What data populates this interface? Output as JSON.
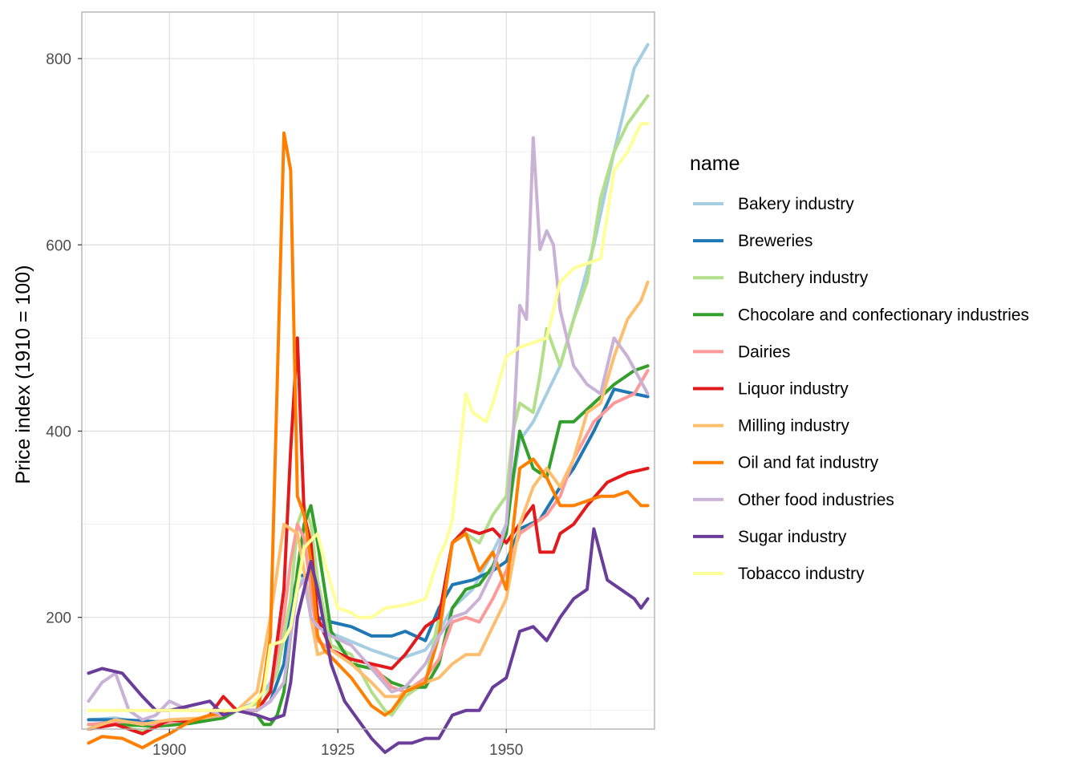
{
  "chart_data": {
    "type": "line",
    "title": "",
    "xlabel": "",
    "ylabel": "Price index (1910 = 100)",
    "xlim": [
      1887,
      1972
    ],
    "ylim": [
      80,
      850
    ],
    "x_ticks": [
      1900,
      1925,
      1950
    ],
    "y_ticks": [
      200,
      400,
      600,
      800
    ],
    "x_tick_labels": [
      "1900",
      "1925",
      "1950"
    ],
    "y_tick_labels": [
      "200",
      "400",
      "600",
      "800"
    ],
    "grid": true,
    "legend_title": "name",
    "legend_position": "right",
    "series": [
      {
        "name": "Bakery industry",
        "color": "#a6cee3",
        "x": [
          1888,
          1892,
          1896,
          1900,
          1905,
          1910,
          1913,
          1915,
          1917,
          1919,
          1920,
          1922,
          1925,
          1930,
          1934,
          1938,
          1940,
          1942,
          1945,
          1948,
          1950,
          1952,
          1954,
          1956,
          1958,
          1960,
          1963,
          1966,
          1969,
          1971
        ],
        "y": [
          90,
          92,
          85,
          88,
          92,
          100,
          110,
          130,
          180,
          230,
          245,
          190,
          180,
          165,
          155,
          165,
          185,
          210,
          230,
          270,
          300,
          390,
          410,
          440,
          470,
          520,
          600,
          700,
          790,
          815
        ]
      },
      {
        "name": "Breweries",
        "color": "#1f78b4",
        "x": [
          1888,
          1893,
          1898,
          1903,
          1908,
          1910,
          1913,
          1915,
          1917,
          1918,
          1919,
          1920,
          1921,
          1922,
          1924,
          1927,
          1930,
          1933,
          1935,
          1938,
          1940,
          1942,
          1945,
          1948,
          1950,
          1952,
          1955,
          1958,
          1960,
          1963,
          1966,
          1969,
          1971
        ],
        "y": [
          90,
          90,
          88,
          90,
          92,
          100,
          100,
          110,
          150,
          210,
          245,
          245,
          245,
          200,
          195,
          190,
          180,
          180,
          185,
          175,
          210,
          235,
          240,
          250,
          260,
          295,
          305,
          340,
          360,
          400,
          445,
          440,
          437
        ]
      },
      {
        "name": "Butchery industry",
        "color": "#b2df8a",
        "x": [
          1888,
          1892,
          1896,
          1900,
          1905,
          1910,
          1912,
          1914,
          1916,
          1918,
          1919,
          1920,
          1921,
          1922,
          1924,
          1927,
          1930,
          1932,
          1933,
          1935,
          1938,
          1940,
          1942,
          1944,
          1946,
          1948,
          1950,
          1951,
          1952,
          1954,
          1955,
          1956,
          1958,
          1960,
          1962,
          1964,
          1966,
          1968,
          1970,
          1971
        ],
        "y": [
          80,
          85,
          78,
          88,
          90,
          100,
          105,
          110,
          140,
          220,
          300,
          320,
          300,
          240,
          170,
          160,
          120,
          100,
          95,
          115,
          130,
          200,
          280,
          290,
          280,
          310,
          330,
          400,
          430,
          420,
          460,
          510,
          470,
          520,
          560,
          650,
          700,
          730,
          750,
          760
        ]
      },
      {
        "name": "Chocolare and confectionary industries",
        "color": "#33a02c",
        "x": [
          1888,
          1893,
          1898,
          1903,
          1908,
          1910,
          1913,
          1914,
          1915,
          1916,
          1917,
          1918,
          1919,
          1920,
          1921,
          1922,
          1924,
          1927,
          1930,
          1933,
          1935,
          1938,
          1940,
          1942,
          1944,
          1946,
          1948,
          1950,
          1951,
          1952,
          1954,
          1956,
          1958,
          1960,
          1963,
          1966,
          1969,
          1971
        ],
        "y": [
          85,
          85,
          83,
          86,
          92,
          100,
          95,
          85,
          85,
          95,
          120,
          180,
          250,
          300,
          320,
          280,
          185,
          150,
          145,
          130,
          125,
          125,
          150,
          210,
          230,
          235,
          255,
          290,
          350,
          400,
          360,
          350,
          410,
          410,
          430,
          450,
          465,
          470
        ]
      },
      {
        "name": "Dairies",
        "color": "#fb9a99",
        "x": [
          1888,
          1893,
          1898,
          1903,
          1908,
          1910,
          1913,
          1915,
          1916,
          1917,
          1918,
          1919,
          1920,
          1921,
          1922,
          1924,
          1927,
          1930,
          1933,
          1935,
          1938,
          1940,
          1942,
          1944,
          1946,
          1948,
          1950,
          1952,
          1954,
          1956,
          1958,
          1960,
          1963,
          1966,
          1969,
          1971
        ],
        "y": [
          85,
          88,
          85,
          90,
          95,
          100,
          100,
          120,
          160,
          200,
          260,
          300,
          285,
          230,
          175,
          165,
          155,
          150,
          125,
          120,
          135,
          155,
          195,
          200,
          195,
          220,
          250,
          290,
          300,
          310,
          330,
          370,
          410,
          430,
          440,
          465
        ]
      },
      {
        "name": "Liquor industry",
        "color": "#e31a1c",
        "x": [
          1888,
          1892,
          1896,
          1900,
          1903,
          1906,
          1908,
          1910,
          1913,
          1915,
          1917,
          1918,
          1919,
          1920,
          1921,
          1922,
          1924,
          1927,
          1930,
          1933,
          1935,
          1938,
          1940,
          1942,
          1944,
          1946,
          1948,
          1950,
          1952,
          1954,
          1955,
          1957,
          1958,
          1960,
          1962,
          1965,
          1968,
          1971
        ],
        "y": [
          80,
          85,
          75,
          90,
          88,
          95,
          115,
          100,
          100,
          120,
          230,
          380,
          500,
          310,
          280,
          200,
          165,
          155,
          150,
          145,
          160,
          190,
          200,
          280,
          295,
          290,
          295,
          280,
          300,
          320,
          270,
          270,
          290,
          300,
          320,
          345,
          355,
          360
        ]
      },
      {
        "name": "Milling industry",
        "color": "#fdbf6f",
        "x": [
          1888,
          1892,
          1896,
          1900,
          1905,
          1910,
          1913,
          1915,
          1917,
          1919,
          1920,
          1921,
          1922,
          1924,
          1927,
          1930,
          1932,
          1934,
          1936,
          1938,
          1940,
          1942,
          1944,
          1946,
          1948,
          1950,
          1952,
          1954,
          1956,
          1958,
          1960,
          1962,
          1964,
          1966,
          1968,
          1970,
          1971
        ],
        "y": [
          80,
          90,
          85,
          90,
          92,
          100,
          120,
          200,
          300,
          290,
          250,
          200,
          160,
          165,
          150,
          130,
          115,
          115,
          125,
          130,
          135,
          150,
          160,
          160,
          190,
          220,
          300,
          340,
          360,
          340,
          370,
          420,
          430,
          480,
          520,
          540,
          560
        ]
      },
      {
        "name": "Oil and fat industry",
        "color": "#ff7f00",
        "x": [
          1888,
          1890,
          1893,
          1896,
          1898,
          1900,
          1903,
          1906,
          1910,
          1913,
          1914,
          1915,
          1916,
          1917,
          1918,
          1919,
          1920,
          1921,
          1922,
          1923,
          1925,
          1927,
          1930,
          1932,
          1933,
          1935,
          1938,
          1940,
          1941,
          1942,
          1944,
          1946,
          1948,
          1950,
          1952,
          1954,
          1956,
          1958,
          1960,
          1962,
          1964,
          1966,
          1968,
          1970,
          1971
        ],
        "y": [
          65,
          72,
          70,
          60,
          68,
          75,
          88,
          95,
          100,
          100,
          130,
          180,
          450,
          720,
          680,
          330,
          310,
          260,
          180,
          165,
          150,
          135,
          105,
          95,
          100,
          120,
          130,
          180,
          230,
          280,
          290,
          250,
          270,
          230,
          360,
          370,
          350,
          320,
          320,
          325,
          330,
          330,
          335,
          320,
          320
        ]
      },
      {
        "name": "Other food industries",
        "color": "#cab2d6",
        "x": [
          1888,
          1890,
          1892,
          1894,
          1896,
          1898,
          1900,
          1903,
          1906,
          1908,
          1910,
          1913,
          1915,
          1917,
          1918,
          1919,
          1920,
          1921,
          1922,
          1924,
          1927,
          1930,
          1933,
          1935,
          1938,
          1940,
          1942,
          1944,
          1946,
          1948,
          1950,
          1951,
          1952,
          1953,
          1954,
          1955,
          1956,
          1957,
          1958,
          1960,
          1962,
          1964,
          1966,
          1968,
          1971
        ],
        "y": [
          110,
          130,
          140,
          100,
          90,
          95,
          110,
          100,
          100,
          95,
          100,
          100,
          110,
          130,
          180,
          230,
          240,
          200,
          190,
          180,
          170,
          145,
          120,
          125,
          150,
          180,
          200,
          205,
          220,
          250,
          300,
          390,
          535,
          520,
          715,
          595,
          615,
          600,
          530,
          470,
          450,
          440,
          500,
          480,
          440
        ]
      },
      {
        "name": "Sugar industry",
        "color": "#6a3d9a",
        "x": [
          1888,
          1890,
          1893,
          1896,
          1898,
          1900,
          1903,
          1906,
          1908,
          1910,
          1913,
          1915,
          1917,
          1918,
          1919,
          1920,
          1921,
          1922,
          1924,
          1926,
          1928,
          1930,
          1932,
          1934,
          1936,
          1938,
          1940,
          1942,
          1944,
          1946,
          1948,
          1950,
          1952,
          1954,
          1956,
          1958,
          1960,
          1962,
          1963,
          1965,
          1967,
          1969,
          1970,
          1971
        ],
        "y": [
          140,
          145,
          140,
          115,
          100,
          100,
          105,
          110,
          95,
          100,
          95,
          90,
          95,
          130,
          200,
          230,
          260,
          230,
          150,
          110,
          90,
          70,
          55,
          65,
          65,
          70,
          70,
          95,
          100,
          100,
          125,
          135,
          185,
          190,
          175,
          200,
          220,
          230,
          295,
          240,
          230,
          220,
          210,
          220
        ]
      },
      {
        "name": "Tobacco industry",
        "color": "#ffff99",
        "x": [
          1888,
          1893,
          1898,
          1903,
          1908,
          1910,
          1912,
          1914,
          1915,
          1917,
          1918,
          1920,
          1922,
          1923,
          1925,
          1927,
          1928,
          1930,
          1932,
          1934,
          1936,
          1938,
          1940,
          1941,
          1942,
          1944,
          1945,
          1947,
          1948,
          1950,
          1952,
          1954,
          1956,
          1958,
          1960,
          1962,
          1964,
          1966,
          1968,
          1970,
          1971
        ],
        "y": [
          100,
          100,
          100,
          100,
          100,
          100,
          105,
          120,
          170,
          175,
          190,
          275,
          290,
          260,
          210,
          205,
          200,
          200,
          210,
          212,
          215,
          220,
          265,
          280,
          305,
          440,
          420,
          410,
          430,
          480,
          490,
          495,
          500,
          560,
          575,
          580,
          585,
          680,
          700,
          730,
          730
        ]
      }
    ]
  }
}
